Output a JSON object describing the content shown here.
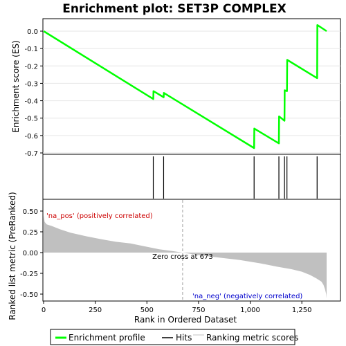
{
  "chart_data": {
    "type": "line",
    "title": "Enrichment plot: SET3P COMPLEX",
    "es_panel": {
      "ylabel": "Enrichment score (ES)",
      "ylim": [
        -0.7,
        0.05
      ],
      "yticks": [
        0.0,
        -0.1,
        -0.2,
        -0.3,
        -0.4,
        -0.5,
        -0.6,
        -0.7
      ],
      "ytick_labels": [
        "0.0",
        "-0.1",
        "-0.2",
        "-0.3",
        "-0.4",
        "-0.5",
        "-0.6",
        "-0.7"
      ],
      "series": [
        {
          "name": "Enrichment profile",
          "color": "#00ff00",
          "x": [
            0,
            531,
            532,
            581,
            582,
            1019,
            1020,
            1139,
            1140,
            1166,
            1167,
            1178,
            1179,
            1324,
            1325,
            1370
          ],
          "y": [
            0.0,
            -0.39,
            -0.345,
            -0.38,
            -0.355,
            -0.672,
            -0.56,
            -0.645,
            -0.49,
            -0.515,
            -0.34,
            -0.345,
            -0.165,
            -0.27,
            0.035,
            0.0
          ]
        }
      ]
    },
    "hits": {
      "name": "Hits",
      "color": "#000000",
      "positions": [
        531,
        581,
        1019,
        1139,
        1166,
        1178,
        1324
      ]
    },
    "color_bar": {
      "colors": [
        "#e8001a",
        "#ee2a3a",
        "#f24b55",
        "#f66d72",
        "#fa8f92",
        "#fdb2c8",
        "#fdc4e8",
        "#dcdcf8",
        "#c6c6f8",
        "#9090fb",
        "#6a5cf0",
        "#5a3ae6",
        "#3c10d8"
      ],
      "boundaries": [
        0,
        20,
        122,
        296,
        409,
        531,
        590,
        670,
        806,
        956,
        1056,
        1148,
        1263,
        1370
      ]
    },
    "rank_panel": {
      "ylabel": "Ranked list metric (PreRanked)",
      "xlabel": "Rank in Ordered Dataset",
      "ylim": [
        -0.57,
        0.55
      ],
      "yticks": [
        0.5,
        0.25,
        0.0,
        -0.25,
        -0.5
      ],
      "ytick_labels": [
        "0.50",
        "0.25",
        "0.00",
        "-0.25",
        "-0.50"
      ],
      "xlim": [
        0,
        1370
      ],
      "xticks": [
        0,
        250,
        500,
        750,
        1000,
        1250
      ],
      "xtick_labels": [
        "0",
        "250",
        "500",
        "750",
        "1,000",
        "1,250"
      ],
      "series": [
        {
          "name": "Ranking metric scores",
          "color": "#c0c0c0",
          "x": [
            0,
            5,
            15,
            40,
            80,
            130,
            200,
            280,
            350,
            420,
            500,
            560,
            620,
            673,
            750,
            850,
            950,
            1050,
            1130,
            1200,
            1250,
            1290,
            1320,
            1345,
            1355,
            1362,
            1368,
            1370
          ],
          "y": [
            0.45,
            0.37,
            0.34,
            0.32,
            0.28,
            0.24,
            0.2,
            0.16,
            0.13,
            0.11,
            0.07,
            0.04,
            0.02,
            0.0,
            -0.03,
            -0.06,
            -0.09,
            -0.13,
            -0.17,
            -0.2,
            -0.23,
            -0.27,
            -0.31,
            -0.35,
            -0.39,
            -0.44,
            -0.5,
            -0.55
          ]
        }
      ],
      "zero_cross": 673,
      "zero_cross_label": "Zero cross at 673",
      "pos_label": "'na_pos' (positively correlated)",
      "neg_label": "'na_neg' (negatively correlated)",
      "pos_color": "#cc0000",
      "neg_color": "#0000cc"
    },
    "legend": {
      "items": [
        {
          "label": "Enrichment profile",
          "color": "#00ff00"
        },
        {
          "label": "Hits",
          "color": "#000000"
        },
        {
          "label": "Ranking metric scores",
          "color": "#c0c0c0"
        }
      ]
    }
  }
}
